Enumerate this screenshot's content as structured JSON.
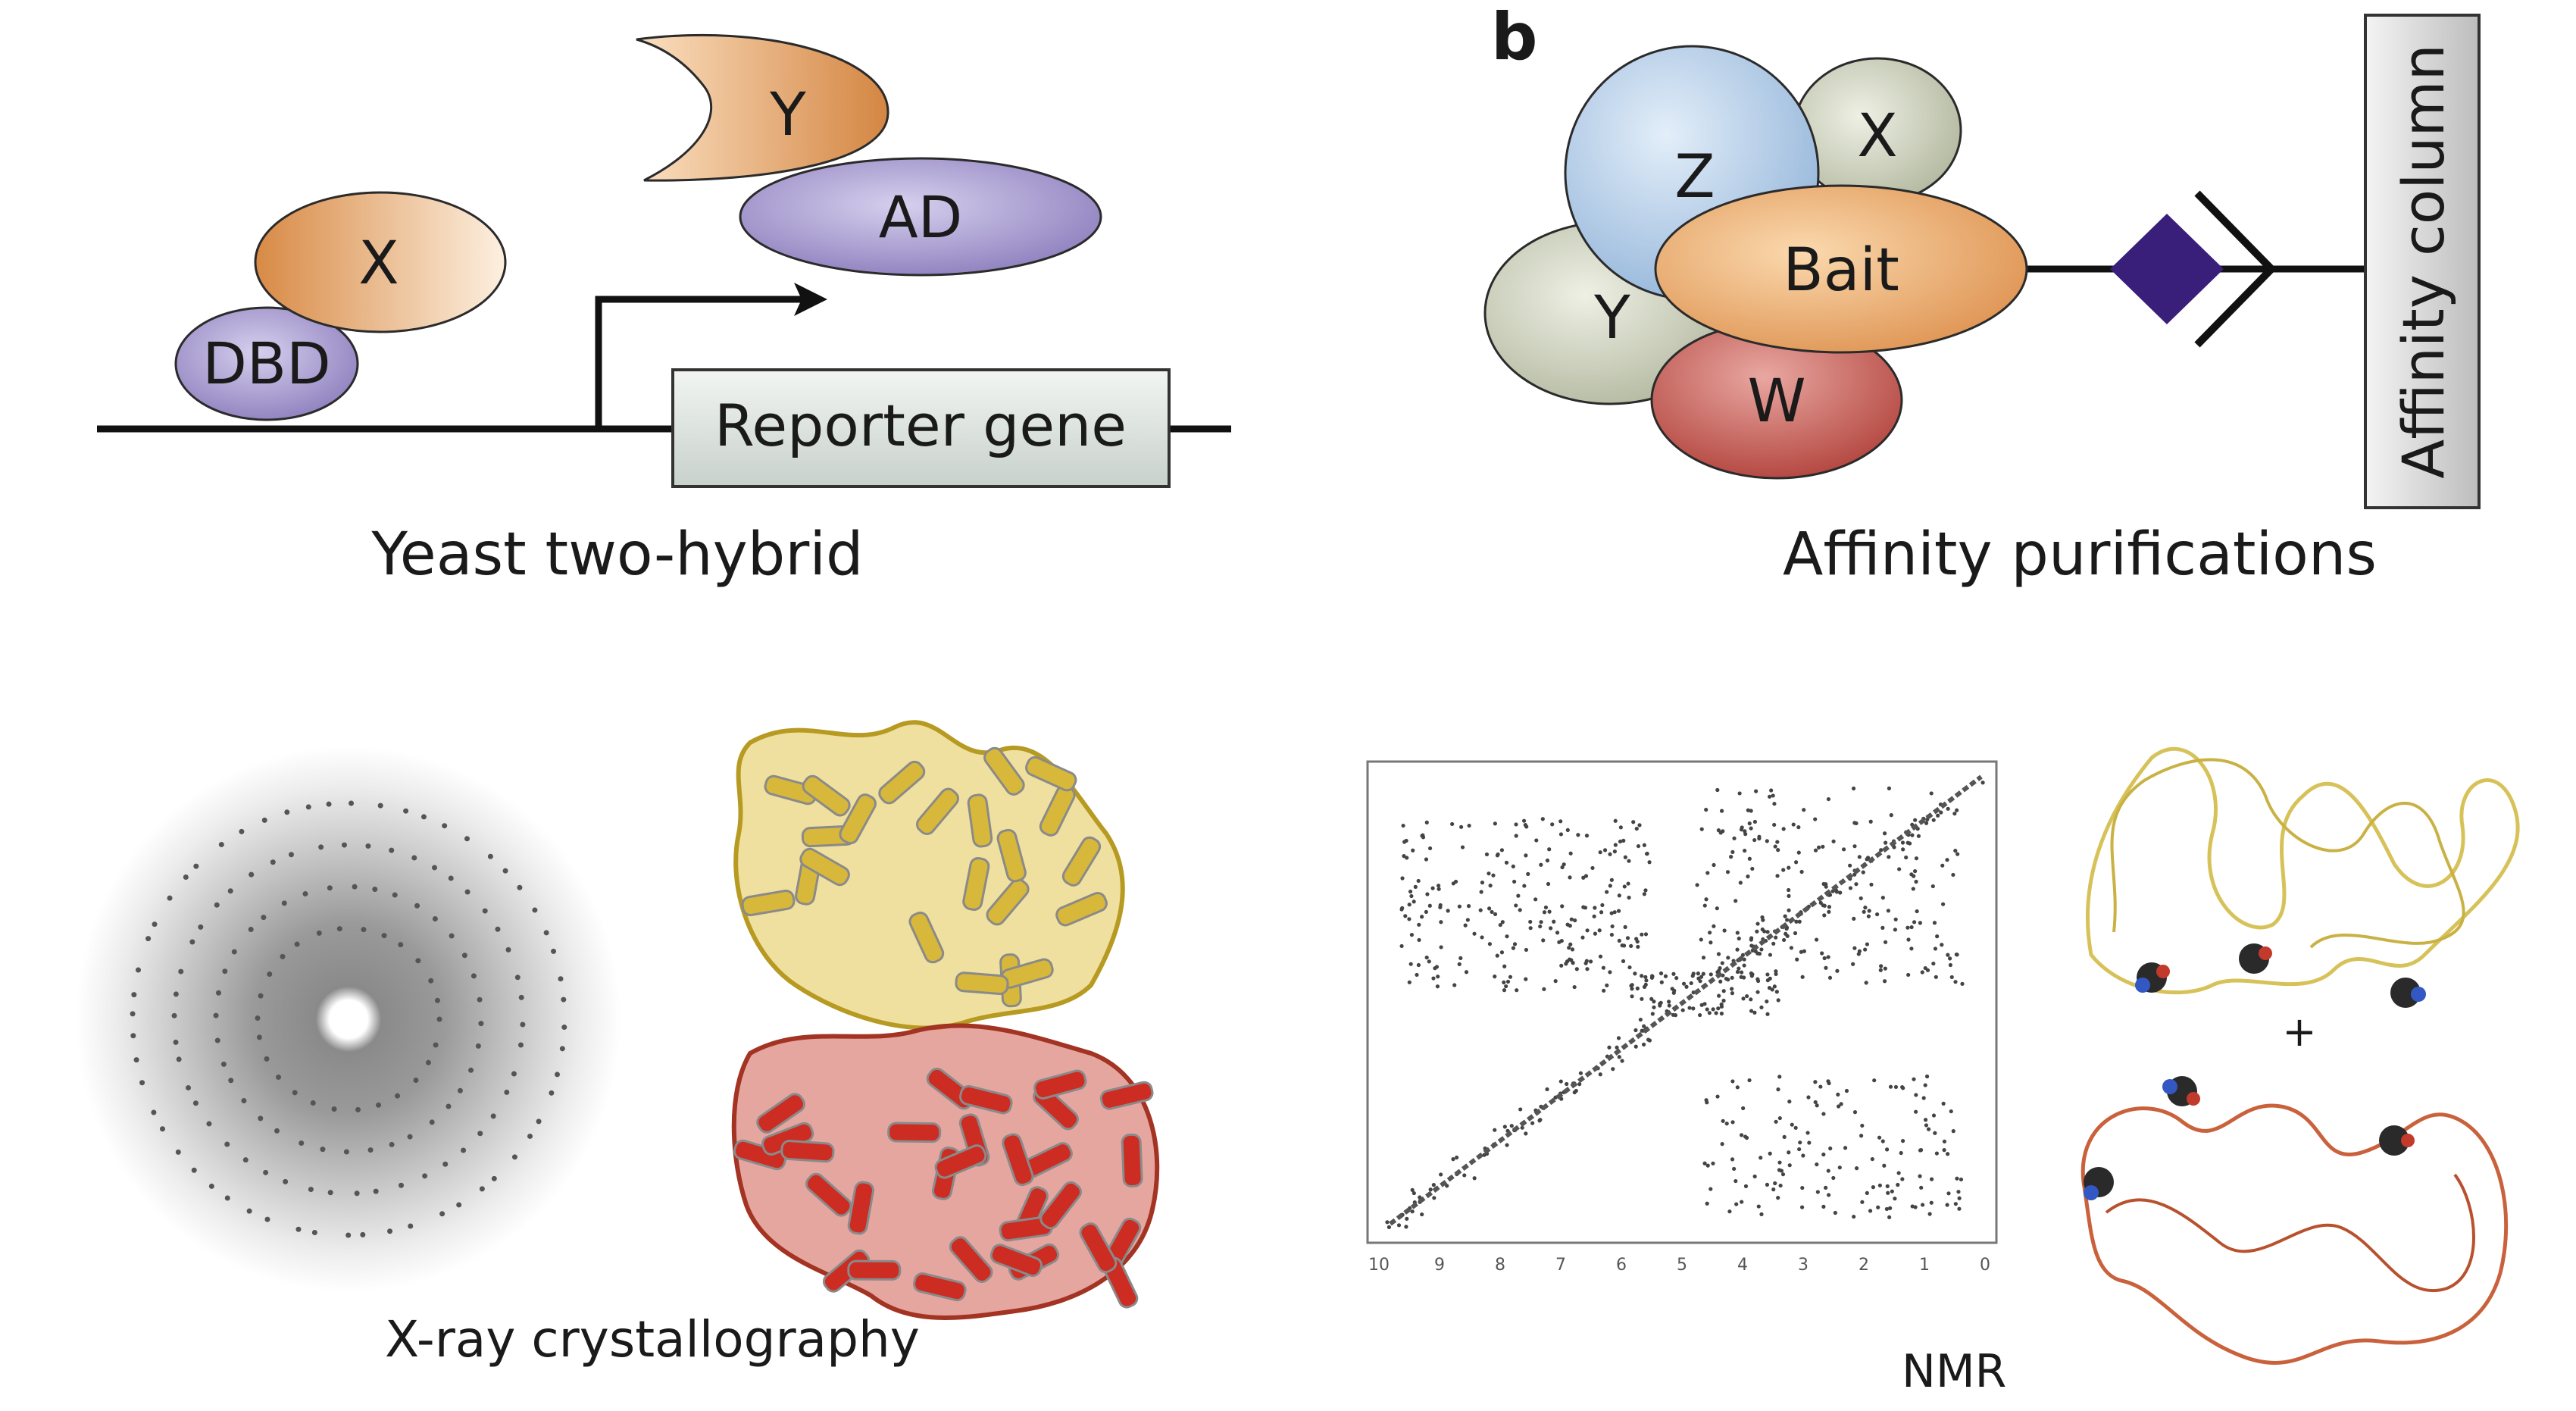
{
  "panel_a": {
    "caption": "Yeast two-hybrid",
    "blobs": {
      "y": "Y",
      "ad": "AD",
      "x": "X",
      "dbd": "DBD"
    },
    "reporter_label": "Reporter gene"
  },
  "panel_b": {
    "panel_letter": "b",
    "caption": "Affinity purifications",
    "blobs": {
      "z": "Z",
      "x": "X",
      "y": "Y",
      "bait": "Bait",
      "w": "W"
    },
    "column_label": "Affinity column",
    "tag_color": "#3a1f7a"
  },
  "xray": {
    "caption": "X-ray crystallography"
  },
  "nmr": {
    "caption": "NMR",
    "axis_ticks": [
      "10",
      "9",
      "8",
      "7",
      "6",
      "5",
      "4",
      "3",
      "2",
      "1",
      "0"
    ],
    "plus_sign": "+"
  }
}
